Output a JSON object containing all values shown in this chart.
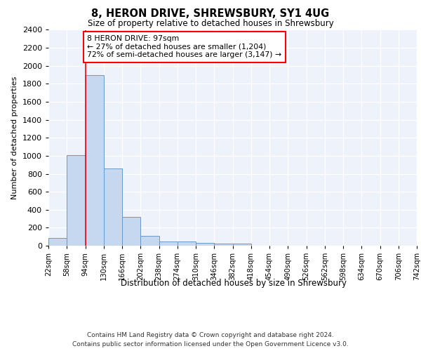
{
  "title1": "8, HERON DRIVE, SHREWSBURY, SY1 4UG",
  "title2": "Size of property relative to detached houses in Shrewsbury",
  "xlabel": "Distribution of detached houses by size in Shrewsbury",
  "ylabel": "Number of detached properties",
  "bin_edges": [
    22,
    58,
    94,
    130,
    166,
    202,
    238,
    274,
    310,
    346,
    382,
    418,
    454,
    490,
    526,
    562,
    598,
    634,
    670,
    706,
    742
  ],
  "bin_labels": [
    "22sqm",
    "58sqm",
    "94sqm",
    "130sqm",
    "166sqm",
    "202sqm",
    "238sqm",
    "274sqm",
    "310sqm",
    "346sqm",
    "382sqm",
    "418sqm",
    "454sqm",
    "490sqm",
    "526sqm",
    "562sqm",
    "598sqm",
    "634sqm",
    "670sqm",
    "706sqm",
    "742sqm"
  ],
  "bar_heights": [
    85,
    1010,
    1900,
    860,
    320,
    110,
    50,
    45,
    30,
    22,
    20,
    0,
    0,
    0,
    0,
    0,
    0,
    0,
    0,
    0
  ],
  "bar_color": "#c5d8f0",
  "bar_edge_color": "#6699cc",
  "ylim": [
    0,
    2400
  ],
  "yticks": [
    0,
    200,
    400,
    600,
    800,
    1000,
    1200,
    1400,
    1600,
    1800,
    2000,
    2200,
    2400
  ],
  "red_line_x": 94,
  "annotation_line1": "8 HERON DRIVE: 97sqm",
  "annotation_line2": "← 27% of detached houses are smaller (1,204)",
  "annotation_line3": "72% of semi-detached houses are larger (3,147) →",
  "footer1": "Contains HM Land Registry data © Crown copyright and database right 2024.",
  "footer2": "Contains public sector information licensed under the Open Government Licence v3.0.",
  "plot_bg_color": "#eef2fb"
}
